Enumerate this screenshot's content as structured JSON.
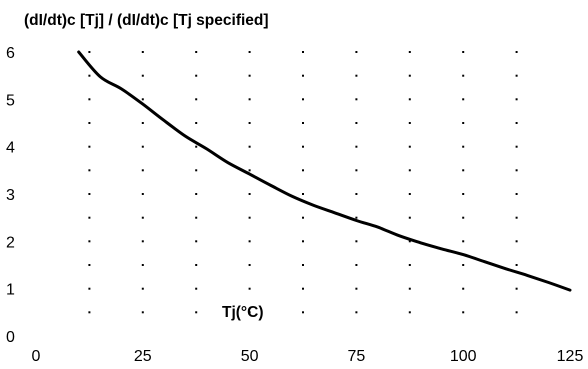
{
  "chart_data": {
    "type": "line",
    "title": "(dI/dt)c [Tj] / (dI/dt)c [Tj specified]",
    "xlabel": "Tj(°C)",
    "ylabel": "",
    "xlim": [
      0,
      125
    ],
    "ylim": [
      0,
      6
    ],
    "x_ticks": [
      "0",
      "25",
      "50",
      "75",
      "100",
      "125"
    ],
    "y_ticks": [
      "0",
      "1",
      "2",
      "3",
      "4",
      "5",
      "6"
    ],
    "grid": "dotted",
    "series": [
      {
        "x": [
          10,
          15,
          20,
          25,
          30,
          35,
          40,
          45,
          50,
          55,
          60,
          65,
          70,
          75,
          80,
          85,
          90,
          95,
          100,
          105,
          110,
          115,
          120,
          125
        ],
        "y": [
          6.0,
          5.48,
          5.22,
          4.9,
          4.55,
          4.22,
          3.95,
          3.66,
          3.42,
          3.18,
          2.95,
          2.76,
          2.6,
          2.44,
          2.3,
          2.12,
          1.97,
          1.84,
          1.72,
          1.57,
          1.42,
          1.28,
          1.13,
          0.97
        ]
      }
    ]
  }
}
